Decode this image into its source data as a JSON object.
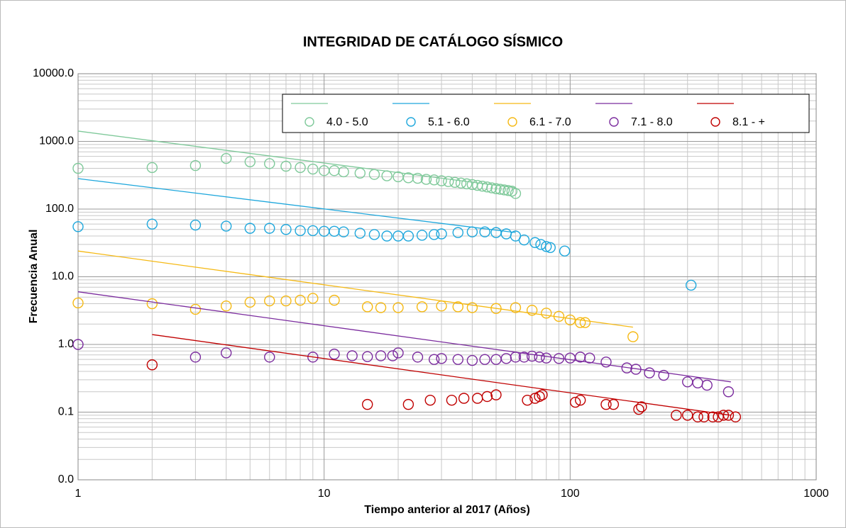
{
  "chart_data": {
    "type": "scatter",
    "title": "INTEGRIDAD DE CATÁLOGO SÍSMICO",
    "xlabel": "Tiempo anterior al 2017 (Años)",
    "ylabel": "Frecuencia Anual",
    "xscale": "log",
    "yscale": "log",
    "xlim": [
      1,
      1000
    ],
    "ylim": [
      0.01,
      10000
    ],
    "xticks": [
      1,
      10,
      100,
      1000
    ],
    "yticks": [
      {
        "value": 10000,
        "label": "10000.0"
      },
      {
        "value": 1000,
        "label": "1000.0"
      },
      {
        "value": 100,
        "label": "100.0"
      },
      {
        "value": 10,
        "label": "10.0"
      },
      {
        "value": 1,
        "label": "1.0"
      },
      {
        "value": 0.1,
        "label": "0.1"
      },
      {
        "value": 0.01,
        "label": "0.0"
      }
    ],
    "grid": true,
    "minor_grid": true,
    "legend": "top-right",
    "series": [
      {
        "name": "4.0 - 5.0",
        "color": "#7fc99a",
        "x": [
          1,
          2,
          3,
          4,
          5,
          6,
          7,
          8,
          9,
          10,
          11,
          12,
          14,
          16,
          18,
          20,
          22,
          24,
          26,
          28,
          30,
          32,
          34,
          36,
          38,
          40,
          42,
          44,
          46,
          48,
          50,
          52,
          54,
          56,
          58,
          60
        ],
        "values": [
          400,
          410,
          440,
          560,
          500,
          470,
          430,
          410,
          390,
          370,
          370,
          355,
          340,
          325,
          310,
          300,
          290,
          285,
          275,
          270,
          262,
          255,
          248,
          242,
          236,
          230,
          224,
          218,
          212,
          206,
          200,
          196,
          192,
          188,
          184,
          170
        ],
        "trendline": {
          "x": [
            1,
            60
          ],
          "values": [
            1420,
            206
          ]
        }
      },
      {
        "name": "5.1 - 6.0",
        "color": "#1ea7dc",
        "x": [
          1,
          2,
          3,
          4,
          5,
          6,
          7,
          8,
          9,
          10,
          11,
          12,
          14,
          16,
          18,
          20,
          22,
          25,
          28,
          30,
          35,
          40,
          45,
          50,
          55,
          60,
          65,
          72,
          76,
          80,
          83,
          95,
          310
        ],
        "values": [
          55,
          60,
          58,
          56,
          52,
          52,
          50,
          48,
          48,
          47,
          47,
          46,
          44,
          42,
          40,
          40,
          40,
          41,
          42,
          43,
          45,
          46,
          46,
          45,
          43,
          40,
          35,
          32,
          30,
          28,
          27,
          24,
          7.5
        ],
        "trendline": {
          "x": [
            1,
            60
          ],
          "values": [
            282,
            45
          ]
        }
      },
      {
        "name": "6.1 - 7.0",
        "color": "#f5b914",
        "x": [
          1,
          2,
          3,
          4,
          5,
          6,
          7,
          8,
          9,
          11,
          15,
          17,
          20,
          25,
          30,
          35,
          40,
          50,
          60,
          70,
          80,
          90,
          100,
          110,
          115,
          180
        ],
        "values": [
          4.1,
          4.0,
          3.3,
          3.7,
          4.2,
          4.4,
          4.4,
          4.5,
          4.8,
          4.5,
          3.6,
          3.5,
          3.5,
          3.6,
          3.7,
          3.6,
          3.5,
          3.4,
          3.5,
          3.2,
          2.9,
          2.6,
          2.3,
          2.1,
          2.1,
          1.3
        ],
        "trendline": {
          "x": [
            1,
            180
          ],
          "values": [
            24,
            1.8
          ]
        }
      },
      {
        "name": "7.1 - 8.0",
        "color": "#7b2c9e",
        "x": [
          1,
          3,
          4,
          6,
          9,
          11,
          13,
          15,
          17,
          19,
          20,
          24,
          28,
          30,
          35,
          40,
          45,
          50,
          55,
          60,
          65,
          70,
          75,
          80,
          90,
          100,
          110,
          120,
          140,
          170,
          185,
          210,
          240,
          300,
          330,
          360,
          440
        ],
        "values": [
          1.0,
          0.65,
          0.75,
          0.65,
          0.65,
          0.72,
          0.68,
          0.66,
          0.68,
          0.68,
          0.75,
          0.65,
          0.6,
          0.62,
          0.6,
          0.58,
          0.6,
          0.6,
          0.62,
          0.65,
          0.65,
          0.67,
          0.65,
          0.63,
          0.62,
          0.63,
          0.65,
          0.63,
          0.55,
          0.45,
          0.43,
          0.38,
          0.35,
          0.28,
          0.27,
          0.25,
          0.2
        ],
        "trendline": {
          "x": [
            1,
            450
          ],
          "values": [
            6,
            0.28
          ]
        }
      },
      {
        "name": "8.1 - +",
        "color": "#c00000",
        "x": [
          2,
          15,
          22,
          27,
          33,
          37,
          42,
          46,
          50,
          67,
          72,
          75,
          77,
          105,
          110,
          140,
          150,
          190,
          195,
          270,
          300,
          330,
          350,
          380,
          400,
          420,
          440,
          470
        ],
        "values": [
          0.5,
          0.13,
          0.13,
          0.15,
          0.15,
          0.16,
          0.16,
          0.17,
          0.18,
          0.15,
          0.16,
          0.17,
          0.18,
          0.14,
          0.15,
          0.13,
          0.13,
          0.11,
          0.12,
          0.09,
          0.09,
          0.085,
          0.085,
          0.085,
          0.085,
          0.09,
          0.09,
          0.085
        ],
        "trendline": {
          "x": [
            2,
            450
          ],
          "values": [
            1.4,
            0.09
          ]
        }
      }
    ]
  }
}
